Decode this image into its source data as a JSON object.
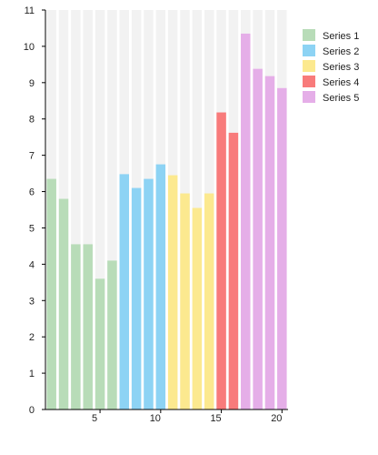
{
  "chart_data": {
    "type": "bar",
    "title": "",
    "xlabel": "",
    "ylabel": "",
    "x": [
      1,
      2,
      3,
      4,
      5,
      6,
      7,
      8,
      9,
      10,
      11,
      12,
      13,
      14,
      15,
      16,
      17,
      18,
      19,
      20
    ],
    "ylim": [
      0,
      11
    ],
    "xlim": [
      0.5,
      20.5
    ],
    "y_ticks": [
      0,
      1,
      2,
      3,
      4,
      5,
      6,
      7,
      8,
      9,
      10,
      11
    ],
    "x_ticks": [
      5,
      10,
      15,
      20
    ],
    "background_bars": true,
    "background_value": 11,
    "background_color": "#f2f2f2",
    "legend_position": "top-right",
    "series": [
      {
        "name": "Series 1",
        "color": "#b8dcb8",
        "x": [
          1,
          2,
          3,
          4,
          5,
          6
        ],
        "values": [
          6.35,
          5.8,
          4.55,
          4.55,
          3.6,
          4.1
        ]
      },
      {
        "name": "Series 2",
        "color": "#8dd3f4",
        "x": [
          7,
          8,
          9,
          10
        ],
        "values": [
          6.48,
          6.1,
          6.35,
          6.75
        ]
      },
      {
        "name": "Series 3",
        "color": "#fce98f",
        "x": [
          11,
          12,
          13,
          14
        ],
        "values": [
          6.45,
          5.95,
          5.55,
          5.95
        ]
      },
      {
        "name": "Series 4",
        "color": "#f87b7b",
        "x": [
          15,
          16
        ],
        "values": [
          8.18,
          7.62
        ]
      },
      {
        "name": "Series 5",
        "color": "#e5aee8",
        "x": [
          17,
          18,
          19,
          20
        ],
        "values": [
          10.35,
          9.38,
          9.18,
          8.85
        ]
      }
    ]
  }
}
